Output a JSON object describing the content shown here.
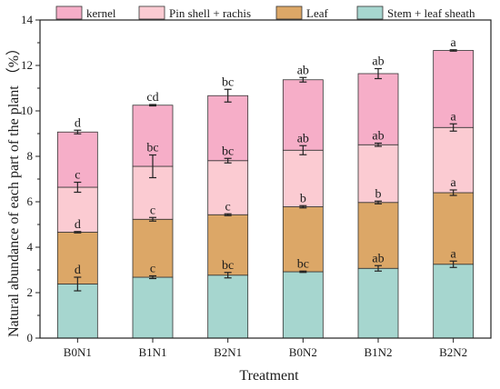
{
  "chart_data": {
    "type": "bar",
    "stacked": true,
    "xlabel": "Treatment",
    "ylabel": "Natural abundance of each part of the plant （%）",
    "ylim": [
      0,
      14
    ],
    "yticks": [
      0,
      2,
      4,
      6,
      8,
      10,
      12,
      14
    ],
    "categories": [
      "B0N1",
      "B1N1",
      "B2N1",
      "B0N2",
      "B1N2",
      "B2N2"
    ],
    "legend_position": "top",
    "series": [
      {
        "name": "Stem + leaf sheath",
        "color": "#a6d6cf",
        "values": [
          2.38,
          2.68,
          2.77,
          2.92,
          3.07,
          3.25
        ],
        "errors": [
          0.3,
          0.06,
          0.12,
          0.03,
          0.12,
          0.14
        ],
        "letters": [
          "d",
          "c",
          "bc",
          "bc",
          "ab",
          "a"
        ]
      },
      {
        "name": "Leaf",
        "color": "#dca767",
        "values": [
          2.28,
          2.55,
          2.66,
          2.86,
          2.9,
          3.15
        ],
        "errors": [
          0.03,
          0.08,
          0.04,
          0.05,
          0.06,
          0.12
        ],
        "letters": [
          "d",
          "c",
          "c",
          "b",
          "b",
          "a"
        ]
      },
      {
        "name": "Pin shell + rachis",
        "color": "#fbcbd2",
        "values": [
          1.98,
          2.33,
          2.38,
          2.49,
          2.54,
          2.87
        ],
        "errors": [
          0.22,
          0.5,
          0.1,
          0.2,
          0.07,
          0.16
        ],
        "letters": [
          "c",
          "bc",
          "bc",
          "ab",
          "ab",
          "a"
        ]
      },
      {
        "name": "kernel",
        "color": "#f6aec8",
        "values": [
          2.43,
          2.69,
          2.86,
          3.1,
          3.13,
          3.39
        ],
        "errors": [
          0.08,
          0.03,
          0.28,
          0.1,
          0.22,
          0.03
        ],
        "letters": [
          "d",
          "cd",
          "bc",
          "ab",
          "ab",
          "a"
        ]
      }
    ]
  }
}
